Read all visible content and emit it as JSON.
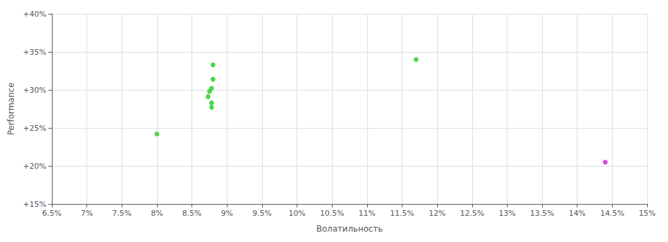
{
  "chart_data": {
    "type": "scatter",
    "xlabel": "Волатильность",
    "ylabel": "Performance",
    "xlim": [
      0.065,
      0.15
    ],
    "ylim": [
      0.15,
      0.4
    ],
    "xticks": [
      {
        "value": 0.065,
        "label": "6.5%"
      },
      {
        "value": 0.07,
        "label": "7%"
      },
      {
        "value": 0.075,
        "label": "7.5%"
      },
      {
        "value": 0.08,
        "label": "8%"
      },
      {
        "value": 0.085,
        "label": "8.5%"
      },
      {
        "value": 0.09,
        "label": "9%"
      },
      {
        "value": 0.095,
        "label": "9.5%"
      },
      {
        "value": 0.1,
        "label": "10%"
      },
      {
        "value": 0.105,
        "label": "10.5%"
      },
      {
        "value": 0.11,
        "label": "11%"
      },
      {
        "value": 0.115,
        "label": "11.5%"
      },
      {
        "value": 0.12,
        "label": "12%"
      },
      {
        "value": 0.125,
        "label": "12.5%"
      },
      {
        "value": 0.13,
        "label": "13%"
      },
      {
        "value": 0.135,
        "label": "13.5%"
      },
      {
        "value": 0.14,
        "label": "14%"
      },
      {
        "value": 0.145,
        "label": "14.5%"
      },
      {
        "value": 0.15,
        "label": "15%"
      }
    ],
    "yticks": [
      {
        "value": 0.15,
        "label": "+15%"
      },
      {
        "value": 0.2,
        "label": "+20%"
      },
      {
        "value": 0.25,
        "label": "+25%"
      },
      {
        "value": 0.3,
        "label": "+30%"
      },
      {
        "value": 0.35,
        "label": "+35%"
      },
      {
        "value": 0.4,
        "label": "+40%"
      }
    ],
    "grid": true,
    "series": [
      {
        "color": "#22cc22",
        "x": [
          0.08,
          0.088,
          0.088,
          0.0878,
          0.0875,
          0.0873,
          0.0878,
          0.0878,
          0.117
        ],
        "values": [
          0.242,
          0.333,
          0.314,
          0.302,
          0.298,
          0.291,
          0.283,
          0.277,
          0.34
        ]
      },
      {
        "color": "#cc22cc",
        "x": [
          0.144
        ],
        "values": [
          0.205
        ]
      }
    ]
  }
}
